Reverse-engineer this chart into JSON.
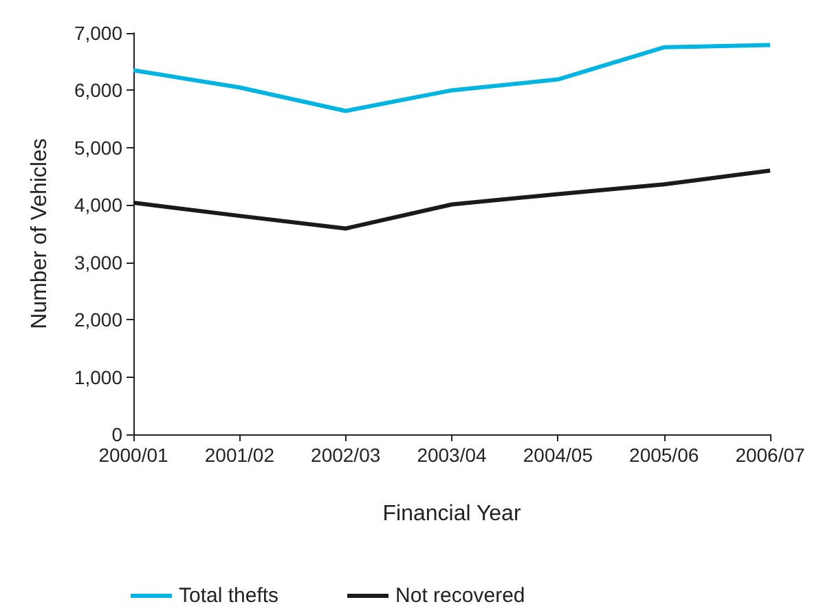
{
  "chart_data": {
    "type": "line",
    "xlabel": "Financial Year",
    "ylabel": "Number of Vehicles",
    "categories": [
      "2000/01",
      "2001/02",
      "2002/03",
      "2003/04",
      "2004/05",
      "2005/06",
      "2006/07"
    ],
    "series": [
      {
        "name": "Total thefts",
        "color": "#00b5e2",
        "values": [
          6350,
          6050,
          5640,
          6000,
          6190,
          6750,
          6790
        ]
      },
      {
        "name": "Not recovered",
        "color": "#1a1a1a",
        "values": [
          4040,
          3810,
          3590,
          4010,
          4190,
          4360,
          4600
        ]
      }
    ],
    "ylim": [
      0,
      7000
    ],
    "yticks": [
      0,
      {
        "value": 1000,
        "label": "1,000"
      },
      {
        "value": 2000,
        "label": "2,000"
      },
      {
        "value": 3000,
        "label": "3,000"
      },
      {
        "value": 4000,
        "label": "4,000"
      },
      {
        "value": 5000,
        "label": "5,000"
      },
      {
        "value": 6000,
        "label": "6,000"
      },
      {
        "value": 7000,
        "label": "7,000"
      }
    ],
    "grid": false,
    "legend": "bottom",
    "marker": "none",
    "line_style": "solid"
  }
}
